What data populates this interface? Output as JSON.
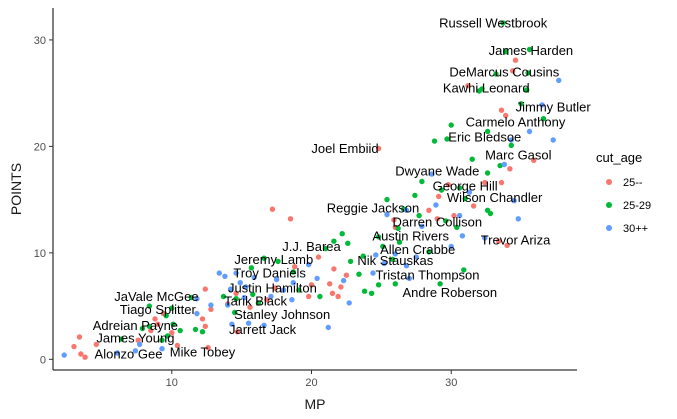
{
  "chart_data": {
    "type": "scatter",
    "title": "",
    "xlabel": "MP",
    "ylabel": "POINTS",
    "xlim": [
      1.5,
      39
    ],
    "ylim": [
      -1,
      33
    ],
    "x_ticks": [
      10,
      20,
      30
    ],
    "y_ticks": [
      0,
      10,
      20,
      30
    ],
    "grid": false,
    "legend": {
      "title": "cut_age",
      "position": "right",
      "entries": [
        {
          "label": "25--",
          "color": "#F8766D"
        },
        {
          "label": "25-29",
          "color": "#00BA38"
        },
        {
          "label": "30++",
          "color": "#619CFF"
        }
      ]
    },
    "series": [
      {
        "name": "25--",
        "color": "#F8766D",
        "points": [
          [
            34.6,
            28.1
          ],
          [
            34.4,
            27.1
          ],
          [
            31.2,
            25.7
          ],
          [
            33.6,
            23.4
          ],
          [
            33.9,
            22.9
          ],
          [
            35.9,
            18.7
          ],
          [
            24.8,
            19.8
          ],
          [
            34.2,
            17.9
          ],
          [
            33.6,
            16.6
          ],
          [
            32.4,
            16.6
          ],
          [
            29.8,
            16.4
          ],
          [
            29.1,
            15.3
          ],
          [
            31.6,
            14.4
          ],
          [
            30.2,
            13.5
          ],
          [
            25.9,
            13.1
          ],
          [
            28.4,
            14.0
          ],
          [
            29.0,
            13.2
          ],
          [
            26.0,
            12.4
          ],
          [
            33.4,
            11.1
          ],
          [
            34.0,
            10.7
          ],
          [
            17.2,
            14.1
          ],
          [
            18.5,
            13.2
          ],
          [
            20.5,
            9.6
          ],
          [
            18.8,
            8.7
          ],
          [
            21.6,
            8.5
          ],
          [
            22.5,
            7.9
          ],
          [
            21.3,
            7.1
          ],
          [
            22.1,
            6.8
          ],
          [
            19.8,
            5.9
          ],
          [
            21.9,
            5.9
          ],
          [
            20.0,
            7.0
          ],
          [
            21.5,
            6.2
          ],
          [
            16.8,
            5.6
          ],
          [
            14.6,
            6.2
          ],
          [
            14.0,
            5.2
          ],
          [
            12.4,
            6.6
          ],
          [
            12.8,
            4.7
          ],
          [
            12.2,
            3.8
          ],
          [
            12.4,
            3.1
          ],
          [
            9.4,
            4.3
          ],
          [
            8.8,
            3.8
          ],
          [
            9.0,
            3.3
          ],
          [
            8.5,
            2.7
          ],
          [
            7.6,
            1.8
          ],
          [
            10.0,
            2.5
          ],
          [
            3.4,
            2.1
          ],
          [
            3.0,
            1.2
          ],
          [
            3.5,
            0.5
          ],
          [
            4.6,
            1.4
          ],
          [
            10.4,
            1.3
          ],
          [
            12.6,
            1.1
          ],
          [
            15.6,
            4.9
          ],
          [
            17.4,
            6.7
          ],
          [
            14.7,
            2.6
          ],
          [
            3.8,
            0.2
          ]
        ]
      },
      {
        "name": "25-29",
        "color": "#00BA38",
        "points": [
          [
            33.7,
            31.6
          ],
          [
            35.6,
            29.1
          ],
          [
            33.9,
            28.9
          ],
          [
            35.5,
            26.9
          ],
          [
            33.2,
            26.8
          ],
          [
            32.2,
            25.4
          ],
          [
            32.0,
            25.2
          ],
          [
            35.4,
            25.3
          ],
          [
            35.0,
            24.0
          ],
          [
            36.6,
            22.6
          ],
          [
            30.0,
            22.0
          ],
          [
            32.6,
            21.4
          ],
          [
            29.7,
            20.7
          ],
          [
            28.8,
            20.5
          ],
          [
            34.3,
            20.1
          ],
          [
            31.5,
            18.8
          ],
          [
            33.5,
            18.2
          ],
          [
            32.6,
            17.5
          ],
          [
            27.9,
            16.7
          ],
          [
            29.3,
            15.9
          ],
          [
            30.6,
            16.1
          ],
          [
            27.4,
            15.4
          ],
          [
            25.4,
            15.0
          ],
          [
            26.6,
            14.1
          ],
          [
            27.7,
            13.5
          ],
          [
            32.6,
            14.0
          ],
          [
            30.4,
            12.4
          ],
          [
            26.2,
            12.3
          ],
          [
            24.8,
            11.5
          ],
          [
            26.3,
            11.0
          ],
          [
            25.1,
            10.6
          ],
          [
            28.4,
            10.1
          ],
          [
            25.8,
            9.4
          ],
          [
            22.2,
            11.8
          ],
          [
            21.6,
            11.1
          ],
          [
            22.6,
            10.9
          ],
          [
            21.0,
            10.4
          ],
          [
            23.7,
            9.7
          ],
          [
            22.8,
            9.2
          ],
          [
            16.6,
            9.5
          ],
          [
            15.7,
            8.6
          ],
          [
            17.6,
            9.2
          ],
          [
            18.7,
            8.2
          ],
          [
            23.4,
            8.0
          ],
          [
            24.8,
            7.0
          ],
          [
            26.0,
            7.1
          ],
          [
            23.8,
            6.4
          ],
          [
            24.3,
            6.2
          ],
          [
            19.1,
            6.5
          ],
          [
            20.6,
            5.9
          ],
          [
            15.8,
            6.1
          ],
          [
            14.6,
            5.7
          ],
          [
            13.7,
            5.9
          ],
          [
            16.2,
            5.3
          ],
          [
            14.5,
            4.4
          ],
          [
            11.4,
            5.8
          ],
          [
            8.4,
            5.0
          ],
          [
            10.0,
            4.8
          ],
          [
            9.6,
            4.1
          ],
          [
            8.4,
            3.1
          ],
          [
            10.1,
            3.3
          ],
          [
            10.6,
            2.7
          ],
          [
            11.7,
            2.8
          ],
          [
            12.2,
            2.6
          ],
          [
            9.7,
            2.2
          ],
          [
            9.3,
            1.8
          ],
          [
            7.9,
            2.9
          ],
          [
            6.4,
            1.9
          ],
          [
            29.2,
            7.1
          ],
          [
            30.9,
            8.4
          ],
          [
            29.6,
            13.0
          ],
          [
            31.0,
            15.1
          ],
          [
            32.8,
            13.7
          ]
        ]
      },
      {
        "name": "30++",
        "color": "#619CFF",
        "points": [
          [
            37.7,
            26.2
          ],
          [
            36.5,
            23.9
          ],
          [
            37.3,
            20.6
          ],
          [
            34.3,
            20.6
          ],
          [
            35.6,
            21.4
          ],
          [
            28.6,
            17.4
          ],
          [
            31.3,
            15.7
          ],
          [
            33.8,
            18.3
          ],
          [
            28.9,
            14.5
          ],
          [
            34.5,
            14.9
          ],
          [
            26.8,
            14.0
          ],
          [
            25.4,
            13.6
          ],
          [
            30.6,
            13.5
          ],
          [
            34.8,
            13.2
          ],
          [
            27.9,
            12.5
          ],
          [
            30.8,
            11.6
          ],
          [
            32.4,
            11.4
          ],
          [
            30.0,
            10.6
          ],
          [
            26.0,
            9.9
          ],
          [
            27.5,
            9.6
          ],
          [
            24.6,
            9.8
          ],
          [
            25.2,
            9.0
          ],
          [
            26.8,
            8.8
          ],
          [
            24.4,
            8.1
          ],
          [
            22.3,
            7.4
          ],
          [
            27.0,
            7.6
          ],
          [
            19.8,
            8.9
          ],
          [
            20.4,
            7.6
          ],
          [
            18.7,
            7.2
          ],
          [
            17.5,
            7.5
          ],
          [
            18.0,
            6.5
          ],
          [
            14.9,
            7.2
          ],
          [
            15.9,
            7.7
          ],
          [
            15.3,
            6.8
          ],
          [
            17.1,
            5.9
          ],
          [
            13.8,
            7.8
          ],
          [
            14.2,
            6.6
          ],
          [
            11.8,
            5.7
          ],
          [
            12.8,
            5.1
          ],
          [
            14.0,
            5.1
          ],
          [
            14.3,
            3.3
          ],
          [
            15.5,
            3.4
          ],
          [
            16.6,
            3.2
          ],
          [
            22.7,
            5.3
          ],
          [
            18.6,
            5.6
          ],
          [
            9.3,
            1.0
          ],
          [
            7.7,
            1.4
          ],
          [
            7.4,
            0.8
          ],
          [
            6.1,
            0.6
          ],
          [
            2.3,
            0.4
          ],
          [
            13.4,
            8.1
          ],
          [
            11.8,
            4.3
          ],
          [
            14.6,
            8.1
          ],
          [
            15.2,
            5.8
          ],
          [
            21.2,
            3.0
          ]
        ]
      }
    ],
    "annotations": [
      {
        "text": "Russell Westbrook",
        "x": 33.0,
        "y": 31.6
      },
      {
        "text": "James Harden",
        "x": 35.7,
        "y": 29.0
      },
      {
        "text": "DeMarcus Cousins",
        "x": 33.8,
        "y": 27.0
      },
      {
        "text": "Kawhi Leonard",
        "x": 32.5,
        "y": 25.5
      },
      {
        "text": "Jimmy Butler",
        "x": 37.3,
        "y": 23.7
      },
      {
        "text": "Carmelo Anthony",
        "x": 34.6,
        "y": 22.3
      },
      {
        "text": "Eric Bledsoe",
        "x": 32.4,
        "y": 20.9
      },
      {
        "text": "Joel Embiid",
        "x": 22.4,
        "y": 19.8
      },
      {
        "text": "Marc Gasol",
        "x": 34.8,
        "y": 19.2
      },
      {
        "text": "Dwyane Wade",
        "x": 29.0,
        "y": 17.7
      },
      {
        "text": "George Hill",
        "x": 31.0,
        "y": 16.3
      },
      {
        "text": "Wilson Chandler",
        "x": 33.1,
        "y": 15.2
      },
      {
        "text": "Reggie Jackson",
        "x": 24.4,
        "y": 14.2
      },
      {
        "text": "Darren Collison",
        "x": 29.0,
        "y": 12.9
      },
      {
        "text": "Austin Rivers",
        "x": 27.1,
        "y": 11.6
      },
      {
        "text": "Trevor Ariza",
        "x": 34.6,
        "y": 11.2
      },
      {
        "text": "J.J. Barea",
        "x": 20.0,
        "y": 10.6
      },
      {
        "text": "Allen Crabbe",
        "x": 27.6,
        "y": 10.3
      },
      {
        "text": "Jeremy Lamb",
        "x": 17.3,
        "y": 9.4
      },
      {
        "text": "Nik Stauskas",
        "x": 26.0,
        "y": 9.3
      },
      {
        "text": "Troy Daniels",
        "x": 17.0,
        "y": 8.1
      },
      {
        "text": "Tristan Thompson",
        "x": 28.3,
        "y": 7.9
      },
      {
        "text": "Justin Hamilton",
        "x": 17.2,
        "y": 6.7
      },
      {
        "text": "Andre Roberson",
        "x": 29.9,
        "y": 6.3
      },
      {
        "text": "JaVale McGee",
        "x": 8.9,
        "y": 5.9
      },
      {
        "text": "Tarik Black",
        "x": 16.0,
        "y": 5.5
      },
      {
        "text": "Tiago Splitter",
        "x": 9.0,
        "y": 4.7
      },
      {
        "text": "Stanley Johnson",
        "x": 17.9,
        "y": 4.2
      },
      {
        "text": "Adreian Payne",
        "x": 7.4,
        "y": 3.2
      },
      {
        "text": "Jarrett Jack",
        "x": 16.5,
        "y": 2.8
      },
      {
        "text": "James Young",
        "x": 7.4,
        "y": 2.0
      },
      {
        "text": "Alonzo Gee",
        "x": 6.9,
        "y": 0.5
      },
      {
        "text": "Mike Tobey",
        "x": 12.2,
        "y": 0.7
      }
    ]
  }
}
